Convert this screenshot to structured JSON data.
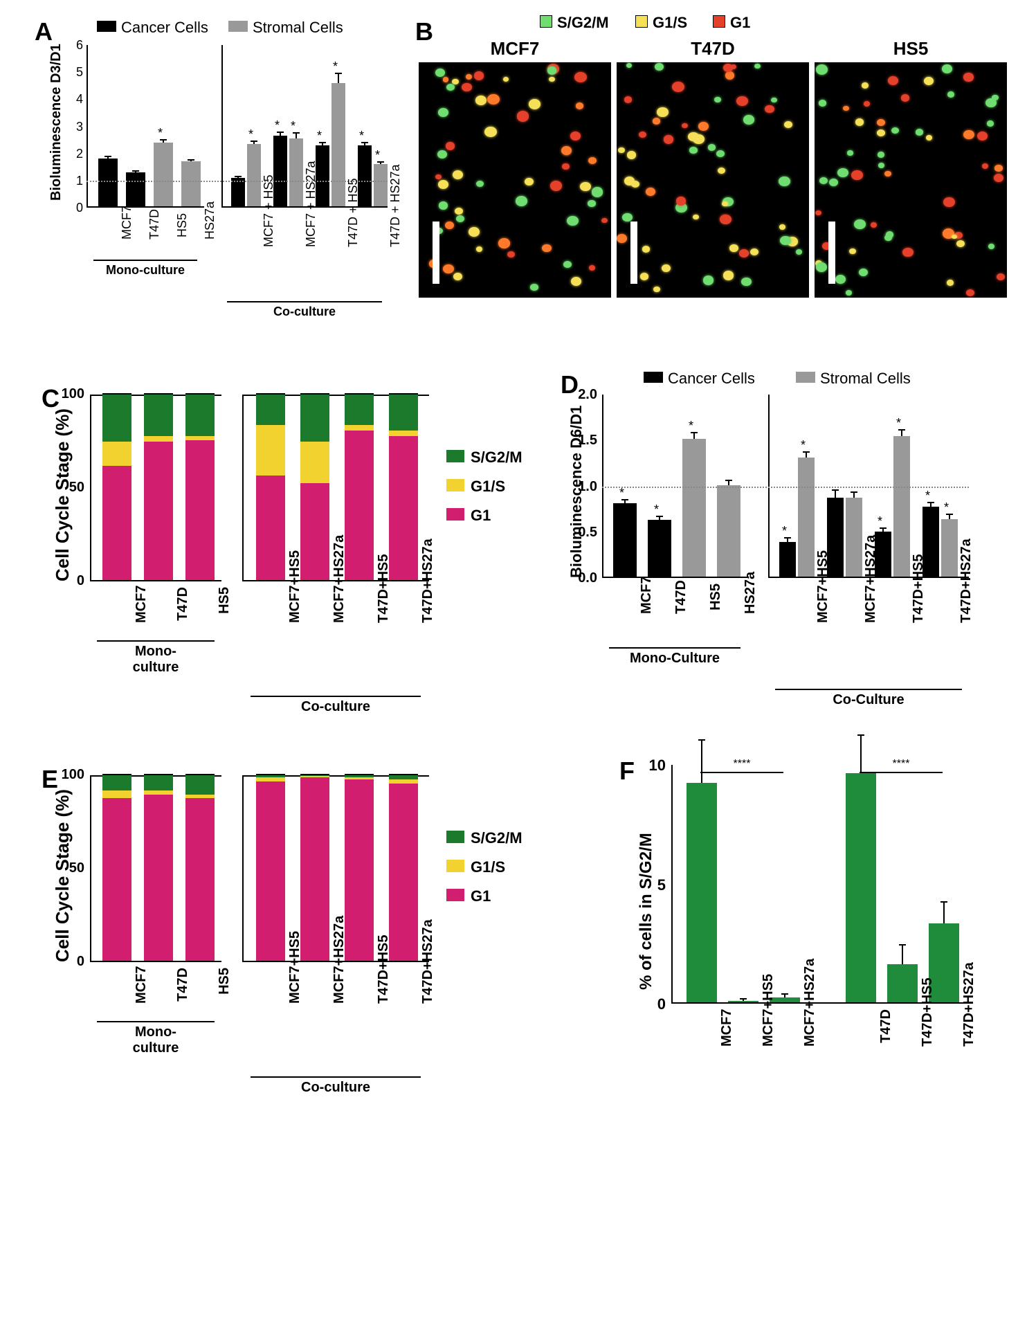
{
  "colors": {
    "cancer": "#000000",
    "stromal": "#999999",
    "sg2m_swatch": "#6FDD6F",
    "g1s_swatch": "#F5E058",
    "g1_swatch": "#E5402A",
    "sg2m": "#1B7A2C",
    "g1s": "#F2D22E",
    "g1": "#D11E6F",
    "green_bar": "#1E8C3A"
  },
  "A": {
    "label": "A",
    "legend": [
      {
        "text": "Cancer Cells",
        "color": "#000000"
      },
      {
        "text": "Stromal Cells",
        "color": "#999999"
      }
    ],
    "ytitle": "Bioluminescence D3/D1",
    "ylim": [
      0,
      6
    ],
    "yticks": [
      0,
      1,
      2,
      3,
      4,
      5,
      6
    ],
    "dashline_y": 1,
    "mono": {
      "label": "Mono-culture",
      "bars": [
        {
          "x": "MCF7",
          "val": 1.75,
          "err": 0.08,
          "color": "#000000",
          "star": false
        },
        {
          "x": "T47D",
          "val": 1.25,
          "err": 0.06,
          "color": "#000000",
          "star": false
        },
        {
          "x": "HS5",
          "val": 2.35,
          "err": 0.1,
          "color": "#999999",
          "star": true
        },
        {
          "x": "HS27a",
          "val": 1.65,
          "err": 0.07,
          "color": "#999999",
          "star": false
        }
      ]
    },
    "co": {
      "label": "Co-culture",
      "groups": [
        {
          "x": "MCF7 + HS5",
          "cancer": {
            "val": 1.05,
            "err": 0.05,
            "star": false
          },
          "stromal": {
            "val": 2.3,
            "err": 0.1,
            "star": true
          }
        },
        {
          "x": "MCF7 + HS27a",
          "cancer": {
            "val": 2.6,
            "err": 0.12,
            "star": true
          },
          "stromal": {
            "val": 2.5,
            "err": 0.2,
            "star": true
          }
        },
        {
          "x": "T47D + HS5",
          "cancer": {
            "val": 2.25,
            "err": 0.1,
            "star": true
          },
          "stromal": {
            "val": 4.55,
            "err": 0.35,
            "star": true
          }
        },
        {
          "x": "T47D + HS27a",
          "cancer": {
            "val": 2.25,
            "err": 0.1,
            "star": true
          },
          "stromal": {
            "val": 1.55,
            "err": 0.08,
            "star": true
          }
        }
      ]
    }
  },
  "B": {
    "label": "B",
    "legend": [
      {
        "text": "S/G2/M",
        "color": "#6FDD6F"
      },
      {
        "text": "G1/S",
        "color": "#F5E058"
      },
      {
        "text": "G1",
        "color": "#E5402A"
      }
    ],
    "images": [
      {
        "title": "MCF7"
      },
      {
        "title": "T47D"
      },
      {
        "title": "HS5"
      }
    ]
  },
  "C": {
    "label": "C",
    "ytitle": "Cell Cycle Stage (%)",
    "ylim": [
      0,
      100
    ],
    "yticks": [
      0,
      50,
      100
    ],
    "legend": [
      {
        "text": "S/G2/M",
        "color": "#1B7A2C"
      },
      {
        "text": "G1/S",
        "color": "#F2D22E"
      },
      {
        "text": "G1",
        "color": "#D11E6F"
      }
    ],
    "mono": {
      "label": "Mono-\nculture",
      "bars": [
        {
          "x": "MCF7",
          "g1": 61,
          "g1s": 13,
          "sg2m": 26
        },
        {
          "x": "T47D",
          "g1": 74,
          "g1s": 3,
          "sg2m": 23
        },
        {
          "x": "HS5",
          "g1": 75,
          "g1s": 2,
          "sg2m": 23
        }
      ]
    },
    "co": {
      "label": "Co-culture",
      "bars": [
        {
          "x": "MCF7+HS5",
          "g1": 56,
          "g1s": 27,
          "sg2m": 17
        },
        {
          "x": "MCF7+HS27a",
          "g1": 52,
          "g1s": 22,
          "sg2m": 26
        },
        {
          "x": "T47D+HS5",
          "g1": 80,
          "g1s": 3,
          "sg2m": 17
        },
        {
          "x": "T47D+HS27a",
          "g1": 77,
          "g1s": 3,
          "sg2m": 20
        }
      ]
    }
  },
  "D": {
    "label": "D",
    "legend": [
      {
        "text": "Cancer Cells",
        "color": "#000000"
      },
      {
        "text": "Stromal Cells",
        "color": "#999999"
      }
    ],
    "ytitle": "Bioluminescence D6/D1",
    "ylim": [
      0,
      2
    ],
    "yticks": [
      0.0,
      0.5,
      1.0,
      1.5,
      2.0
    ],
    "dashline_y": 1.0,
    "mono": {
      "label": "Mono-Culture",
      "bars": [
        {
          "x": "MCF7",
          "val": 0.8,
          "err": 0.04,
          "color": "#000000",
          "star": true
        },
        {
          "x": "T47D",
          "val": 0.62,
          "err": 0.04,
          "color": "#000000",
          "star": true
        },
        {
          "x": "HS5",
          "val": 1.5,
          "err": 0.07,
          "color": "#999999",
          "star": true
        },
        {
          "x": "HS27a",
          "val": 1.0,
          "err": 0.05,
          "color": "#999999",
          "star": false
        }
      ]
    },
    "co": {
      "label": "Co-Culture",
      "groups": [
        {
          "x": "MCF7+HS5",
          "cancer": {
            "val": 0.38,
            "err": 0.04,
            "star": true
          },
          "stromal": {
            "val": 1.3,
            "err": 0.06,
            "star": true
          }
        },
        {
          "x": "MCF7+HS27a",
          "cancer": {
            "val": 0.86,
            "err": 0.08,
            "star": false
          },
          "stromal": {
            "val": 0.86,
            "err": 0.06,
            "star": false
          }
        },
        {
          "x": "T47D+HS5",
          "cancer": {
            "val": 0.49,
            "err": 0.04,
            "star": true
          },
          "stromal": {
            "val": 1.53,
            "err": 0.07,
            "star": true
          }
        },
        {
          "x": "T47D+HS27a",
          "cancer": {
            "val": 0.76,
            "err": 0.05,
            "star": true
          },
          "stromal": {
            "val": 0.63,
            "err": 0.05,
            "star": true
          }
        }
      ]
    }
  },
  "E": {
    "label": "E",
    "ytitle": "Cell Cycle Stage (%)",
    "ylim": [
      0,
      100
    ],
    "yticks": [
      0,
      50,
      100
    ],
    "legend": [
      {
        "text": "S/G2/M",
        "color": "#1B7A2C"
      },
      {
        "text": "G1/S",
        "color": "#F2D22E"
      },
      {
        "text": "G1",
        "color": "#D11E6F"
      }
    ],
    "mono": {
      "label": "Mono-\nculture",
      "bars": [
        {
          "x": "MCF7",
          "g1": 87,
          "g1s": 4,
          "sg2m": 9
        },
        {
          "x": "T47D",
          "g1": 89,
          "g1s": 2,
          "sg2m": 9
        },
        {
          "x": "HS5",
          "g1": 87,
          "g1s": 2,
          "sg2m": 11
        }
      ]
    },
    "co": {
      "label": "Co-culture",
      "bars": [
        {
          "x": "MCF7+HS5",
          "g1": 96,
          "g1s": 2,
          "sg2m": 2
        },
        {
          "x": "MCF7+HS27a",
          "g1": 98,
          "g1s": 1,
          "sg2m": 1
        },
        {
          "x": "T47D+HS5",
          "g1": 97,
          "g1s": 1,
          "sg2m": 2
        },
        {
          "x": "T47D+HS27a",
          "g1": 95,
          "g1s": 2,
          "sg2m": 3
        }
      ]
    }
  },
  "F": {
    "label": "F",
    "ytitle": "% of cells in S/G2/M",
    "ylim": [
      0,
      10
    ],
    "yticks": [
      0,
      5,
      10
    ],
    "bar_color": "#1E8C3A",
    "left": {
      "bracket_label": "****",
      "bars": [
        {
          "x": "MCF7",
          "val": 9.2,
          "err": 1.8
        },
        {
          "x": "MCF7+HS5",
          "val": 0.05,
          "err": 0.1
        },
        {
          "x": "MCF7+HS27a",
          "val": 0.2,
          "err": 0.15
        }
      ]
    },
    "right": {
      "bracket_label": "****",
      "bars": [
        {
          "x": "T47D",
          "val": 9.6,
          "err": 1.6
        },
        {
          "x": "T47D+HS5",
          "val": 1.6,
          "err": 0.8
        },
        {
          "x": "T47D+HS27a",
          "val": 3.3,
          "err": 0.9
        }
      ]
    }
  }
}
